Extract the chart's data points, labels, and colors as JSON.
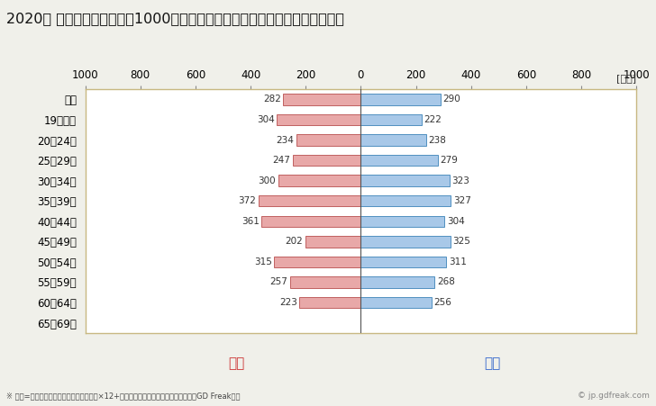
{
  "title": "2020年 民間企業（従業者数1000人以上）フルタイム労働者の男女別平均年収",
  "categories": [
    "全体",
    "19歳以下",
    "20〜24歳",
    "25〜29歳",
    "30〜34歳",
    "35〜39歳",
    "40〜44歳",
    "45〜49歳",
    "50〜54歳",
    "55〜59歳",
    "60〜64歳",
    "65〜69歳"
  ],
  "female_values": [
    282,
    304,
    234,
    247,
    300,
    372,
    361,
    202,
    315,
    257,
    223,
    0
  ],
  "male_values": [
    290,
    222,
    238,
    279,
    323,
    327,
    304,
    325,
    311,
    268,
    256,
    0
  ],
  "female_color": "#e8a8a8",
  "male_color": "#a8c8e8",
  "female_edge_color": "#c06060",
  "male_edge_color": "#5090c0",
  "female_label": "女性",
  "male_label": "男性",
  "female_label_color": "#cc3333",
  "male_label_color": "#3366cc",
  "xlim": [
    -1000,
    1000
  ],
  "xticks": [
    -1000,
    -800,
    -600,
    -400,
    -200,
    0,
    200,
    400,
    600,
    800,
    1000
  ],
  "xticklabels": [
    "1000",
    "800",
    "600",
    "400",
    "200",
    "0",
    "200",
    "400",
    "600",
    "800",
    "1000"
  ],
  "ylabel_unit": "[万円]",
  "footnote": "※ 年収=「きまって支給する現金給与額」×12+「年間賞与その他特別給与額」としてGD Freak推計",
  "watermark": "© jp.gdfreak.com",
  "background_color": "#f0f0ea",
  "plot_bg_color": "#ffffff",
  "title_fontsize": 11.5,
  "tick_fontsize": 8.5,
  "bar_label_fontsize": 7.5,
  "legend_fontsize": 11,
  "footnote_fontsize": 6,
  "watermark_fontsize": 6.5,
  "bar_height": 0.55,
  "spine_color": "#c8b882"
}
